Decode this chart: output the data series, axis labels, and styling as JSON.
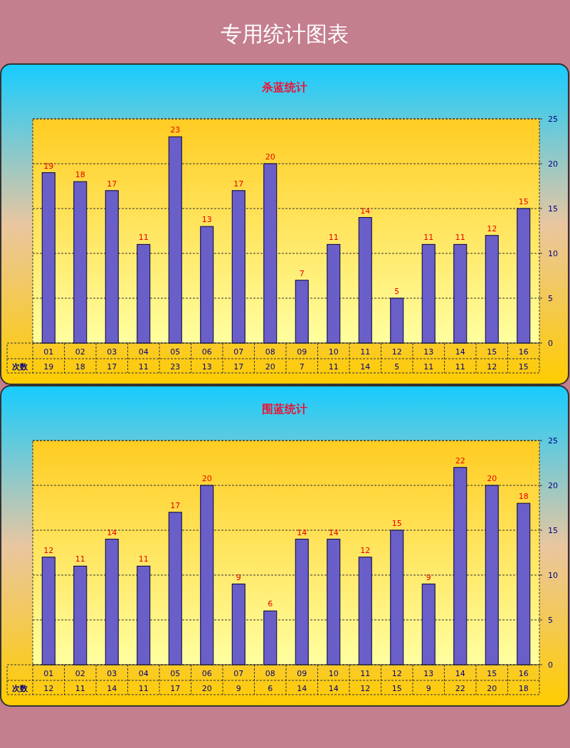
{
  "chart_data": [
    {
      "type": "bar",
      "title": "专用统计图表",
      "subtitle": "杀蓝统计",
      "categories": [
        "01",
        "02",
        "03",
        "04",
        "05",
        "06",
        "07",
        "08",
        "09",
        "10",
        "11",
        "12",
        "13",
        "14",
        "15",
        "16"
      ],
      "series": [
        {
          "name": "次数",
          "color": "#6a5fc8",
          "values": [
            19,
            18,
            17,
            11,
            23,
            13,
            17,
            20,
            7,
            11,
            14,
            5,
            11,
            11,
            12,
            15
          ]
        }
      ],
      "annotations": [
        "19",
        "18",
        "17",
        "11",
        "23",
        "13",
        "17",
        "20",
        "7",
        "11",
        "14",
        "5",
        "11",
        "11",
        "12",
        "15"
      ],
      "ylim": [
        0,
        25
      ],
      "yticks": [
        0,
        5,
        10,
        15,
        20,
        25
      ],
      "grid": "y",
      "data_labels": true
    },
    {
      "type": "bar",
      "subtitle": "围蓝统计",
      "categories": [
        "01",
        "02",
        "03",
        "04",
        "05",
        "06",
        "07",
        "08",
        "09",
        "10",
        "11",
        "12",
        "13",
        "14",
        "15",
        "16"
      ],
      "series": [
        {
          "name": "次数",
          "color": "#6a5fc8",
          "values": [
            12,
            11,
            14,
            11,
            17,
            20,
            9,
            6,
            14,
            14,
            12,
            15,
            9,
            22,
            20,
            18
          ]
        }
      ],
      "annotations": [
        "12",
        "11",
        "14",
        "11",
        "17",
        "20",
        "9",
        "6",
        "14",
        "14",
        "12",
        "15",
        "9",
        "22",
        "20",
        "18"
      ],
      "ylim": [
        0,
        25
      ],
      "yticks": [
        0,
        5,
        10,
        15,
        20,
        25
      ],
      "grid": "y",
      "data_labels": true
    }
  ]
}
